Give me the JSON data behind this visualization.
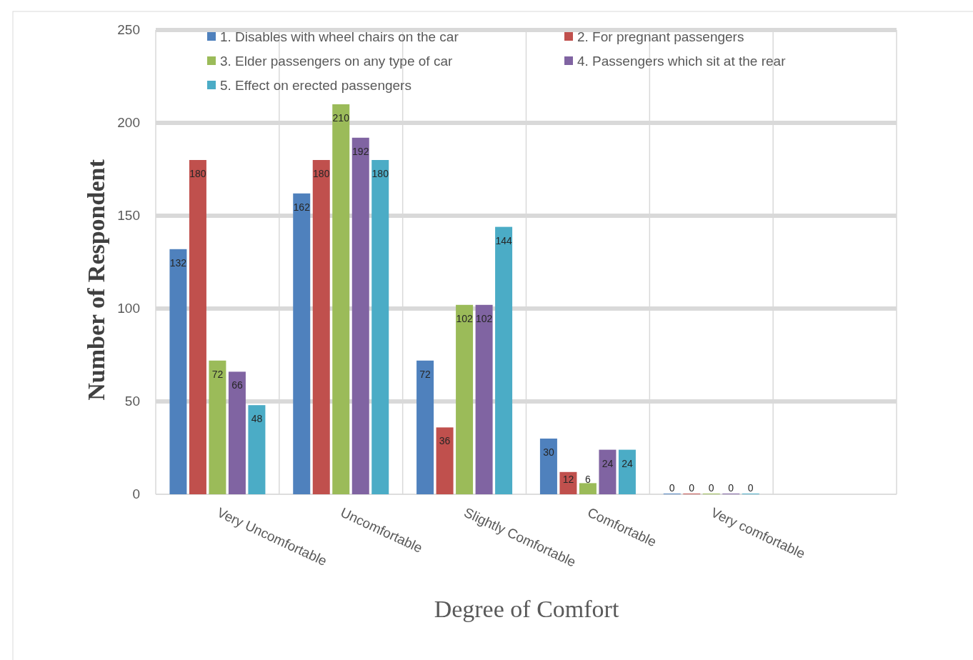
{
  "chart_data": {
    "type": "bar",
    "xlabel": "Degree of Comfort",
    "ylabel": "Number of Respondent",
    "categories": [
      "Very Uncomfortable",
      "Uncomfortable",
      "Slightly Comfortable",
      "Comfortable",
      "Very comfortable",
      null
    ],
    "series": [
      {
        "name": "1. Disables with wheel chairs on the car",
        "color": "#4f81bd",
        "values": [
          132,
          162,
          72,
          30,
          0,
          null
        ]
      },
      {
        "name": "2. For pregnant passengers",
        "color": "#c0504d",
        "values": [
          180,
          180,
          36,
          12,
          0,
          null
        ]
      },
      {
        "name": "3. Elder passengers on any type of car",
        "color": "#9bbb59",
        "values": [
          72,
          210,
          102,
          6,
          0,
          null
        ]
      },
      {
        "name": "4. Passengers which sit at the rear",
        "color": "#8064a2",
        "values": [
          66,
          192,
          102,
          24,
          0,
          null
        ]
      },
      {
        "name": "5. Effect on erected passengers",
        "color": "#4bacc6",
        "values": [
          48,
          180,
          144,
          24,
          0,
          null
        ]
      }
    ],
    "ylim": [
      0,
      250
    ],
    "yticks": [
      0,
      50,
      100,
      150,
      200,
      250
    ],
    "grid": true,
    "legend": "top",
    "data_labels": true
  }
}
